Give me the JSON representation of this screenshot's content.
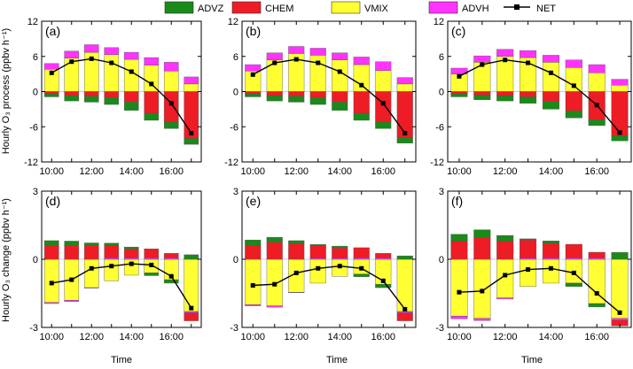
{
  "legend": {
    "items": [
      {
        "label": "ADVZ",
        "color": "#1a8a1a",
        "kind": "box"
      },
      {
        "label": "CHEM",
        "color": "#ee1c24",
        "kind": "box"
      },
      {
        "label": "VMIX",
        "color": "#ffff33",
        "kind": "box"
      },
      {
        "label": "ADVH",
        "color": "#ff33ff",
        "kind": "box"
      },
      {
        "label": "NET",
        "color": "#000000",
        "kind": "line"
      }
    ]
  },
  "labels": {
    "ylabel_top": "Hourly O₃ process (ppbv h⁻¹)",
    "ylabel_bottom": "Hourly O₃ change (ppbv h⁻¹)",
    "xlabel": "Time"
  },
  "chart_data": [
    {
      "type": "bar",
      "panel": "(a)",
      "categories": [
        "10:00",
        "11:00",
        "12:00",
        "13:00",
        "14:00",
        "15:00",
        "16:00",
        "17:00"
      ],
      "x_tick_labels": [
        "10:00",
        "12:00",
        "14:00",
        "16:00"
      ],
      "ylim": [
        -12,
        12
      ],
      "yticks": [
        -12,
        -6,
        0,
        6,
        12
      ],
      "series": [
        {
          "name": "ADVZ",
          "values": [
            -0.5,
            -0.9,
            -1.0,
            -1.2,
            -1.4,
            -1.2,
            -1.1,
            -1.0
          ]
        },
        {
          "name": "CHEM",
          "values": [
            -0.4,
            -0.7,
            -0.8,
            -1.0,
            -1.8,
            -3.7,
            -5.2,
            -8.0
          ]
        },
        {
          "name": "VMIX",
          "values": [
            3.8,
            5.7,
            6.7,
            6.3,
            5.5,
            4.5,
            3.5,
            1.3
          ]
        },
        {
          "name": "ADVH",
          "values": [
            1.0,
            1.2,
            1.3,
            1.2,
            1.2,
            1.3,
            1.5,
            1.2
          ]
        },
        {
          "name": "NET",
          "values": [
            3.2,
            5.1,
            5.6,
            4.9,
            3.4,
            1.3,
            -2.0,
            -7.1
          ]
        }
      ]
    },
    {
      "type": "bar",
      "panel": "(b)",
      "categories": [
        "10:00",
        "11:00",
        "12:00",
        "13:00",
        "14:00",
        "15:00",
        "16:00",
        "17:00"
      ],
      "x_tick_labels": [
        "10:00",
        "12:00",
        "14:00",
        "16:00"
      ],
      "ylim": [
        -12,
        12
      ],
      "yticks": [
        -12,
        -6,
        0,
        6,
        12
      ],
      "series": [
        {
          "name": "ADVZ",
          "values": [
            -0.5,
            -0.9,
            -1.0,
            -1.2,
            -1.4,
            -1.2,
            -1.1,
            -1.0
          ]
        },
        {
          "name": "CHEM",
          "values": [
            -0.4,
            -0.7,
            -0.8,
            -1.0,
            -1.8,
            -3.7,
            -5.2,
            -7.8
          ]
        },
        {
          "name": "VMIX",
          "values": [
            3.5,
            5.4,
            6.5,
            6.2,
            5.4,
            4.6,
            3.6,
            1.3
          ]
        },
        {
          "name": "ADVH",
          "values": [
            1.1,
            1.2,
            1.2,
            1.2,
            1.2,
            1.3,
            1.5,
            1.1
          ]
        },
        {
          "name": "NET",
          "values": [
            2.9,
            4.9,
            5.5,
            4.9,
            3.4,
            1.1,
            -2.0,
            -7.1
          ]
        }
      ]
    },
    {
      "type": "bar",
      "panel": "(c)",
      "categories": [
        "10:00",
        "11:00",
        "12:00",
        "13:00",
        "14:00",
        "15:00",
        "16:00",
        "17:00"
      ],
      "x_tick_labels": [
        "10:00",
        "12:00",
        "14:00",
        "16:00"
      ],
      "ylim": [
        -12,
        12
      ],
      "yticks": [
        -12,
        -6,
        0,
        6,
        12
      ],
      "series": [
        {
          "name": "ADVZ",
          "values": [
            -0.5,
            -0.8,
            -0.9,
            -1.1,
            -1.3,
            -1.2,
            -1.0,
            -0.9
          ]
        },
        {
          "name": "CHEM",
          "values": [
            -0.4,
            -0.6,
            -0.7,
            -0.9,
            -1.7,
            -3.3,
            -4.8,
            -7.5
          ]
        },
        {
          "name": "VMIX",
          "values": [
            3.0,
            5.0,
            6.0,
            5.8,
            5.0,
            4.1,
            3.2,
            1.1
          ]
        },
        {
          "name": "ADVH",
          "values": [
            1.0,
            1.1,
            1.2,
            1.2,
            1.2,
            1.3,
            1.4,
            1.0
          ]
        },
        {
          "name": "NET",
          "values": [
            2.6,
            4.6,
            5.4,
            4.9,
            3.2,
            1.0,
            -2.3,
            -7.0
          ]
        }
      ]
    },
    {
      "type": "bar",
      "panel": "(d)",
      "categories": [
        "10:00",
        "11:00",
        "12:00",
        "13:00",
        "14:00",
        "15:00",
        "16:00",
        "17:00"
      ],
      "x_tick_labels": [
        "10:00",
        "12:00",
        "14:00",
        "16:00"
      ],
      "ylim": [
        -3,
        3
      ],
      "yticks": [
        -3,
        0,
        3
      ],
      "series": [
        {
          "name": "ADVZ",
          "values": [
            0.22,
            0.2,
            0.12,
            0.1,
            0.08,
            -0.12,
            -0.15,
            0.2
          ]
        },
        {
          "name": "CHEM",
          "values": [
            0.6,
            0.6,
            0.6,
            0.55,
            0.4,
            0.4,
            0.2,
            -0.35
          ]
        },
        {
          "name": "VMIX",
          "values": [
            -1.9,
            -1.8,
            -1.25,
            -0.95,
            -0.7,
            -0.6,
            -0.9,
            -2.3
          ]
        },
        {
          "name": "ADVH",
          "values": [
            -0.05,
            -0.06,
            -0.02,
            0.06,
            0.06,
            0.06,
            0.06,
            -0.06
          ]
        },
        {
          "name": "NET",
          "values": [
            -1.05,
            -0.9,
            -0.4,
            -0.3,
            -0.2,
            -0.25,
            -0.75,
            -2.15
          ]
        }
      ]
    },
    {
      "type": "bar",
      "panel": "(e)",
      "categories": [
        "10:00",
        "11:00",
        "12:00",
        "13:00",
        "14:00",
        "15:00",
        "16:00",
        "17:00"
      ],
      "x_tick_labels": [
        "10:00",
        "12:00",
        "14:00",
        "16:00"
      ],
      "ylim": [
        -3,
        3
      ],
      "yticks": [
        -3,
        0,
        3
      ],
      "series": [
        {
          "name": "ADVZ",
          "values": [
            0.25,
            0.22,
            0.12,
            0.05,
            0.08,
            -0.12,
            -0.15,
            0.15
          ]
        },
        {
          "name": "CHEM",
          "values": [
            0.6,
            0.75,
            0.7,
            0.55,
            0.45,
            0.45,
            0.2,
            -0.35
          ]
        },
        {
          "name": "VMIX",
          "values": [
            -2.0,
            -2.05,
            -1.45,
            -1.05,
            -0.75,
            -0.65,
            -1.1,
            -2.3
          ]
        },
        {
          "name": "ADVH",
          "values": [
            -0.05,
            -0.06,
            -0.02,
            0.05,
            0.05,
            0.06,
            0.06,
            -0.06
          ]
        },
        {
          "name": "NET",
          "values": [
            -1.15,
            -1.1,
            -0.6,
            -0.4,
            -0.3,
            -0.4,
            -0.95,
            -2.2
          ]
        }
      ]
    },
    {
      "type": "bar",
      "panel": "(f)",
      "categories": [
        "10:00",
        "11:00",
        "12:00",
        "13:00",
        "14:00",
        "15:00",
        "16:00",
        "17:00"
      ],
      "x_tick_labels": [
        "10:00",
        "12:00",
        "14:00",
        "16:00"
      ],
      "ylim": [
        -3,
        3
      ],
      "yticks": [
        -3,
        0,
        3
      ],
      "series": [
        {
          "name": "ADVZ",
          "values": [
            0.3,
            0.35,
            0.25,
            0.05,
            0.1,
            -0.15,
            -0.15,
            0.3
          ]
        },
        {
          "name": "CHEM",
          "values": [
            0.8,
            0.95,
            0.8,
            0.8,
            0.65,
            0.6,
            0.25,
            -0.25
          ]
        },
        {
          "name": "VMIX",
          "values": [
            -2.5,
            -2.6,
            -1.7,
            -1.2,
            -1.05,
            -1.05,
            -1.95,
            -2.6
          ]
        },
        {
          "name": "ADVH",
          "values": [
            -0.12,
            -0.1,
            -0.05,
            0.05,
            0.06,
            0.06,
            0.06,
            -0.08
          ]
        },
        {
          "name": "NET",
          "values": [
            -1.45,
            -1.4,
            -0.7,
            -0.45,
            -0.4,
            -0.6,
            -1.5,
            -2.35
          ]
        }
      ]
    }
  ]
}
